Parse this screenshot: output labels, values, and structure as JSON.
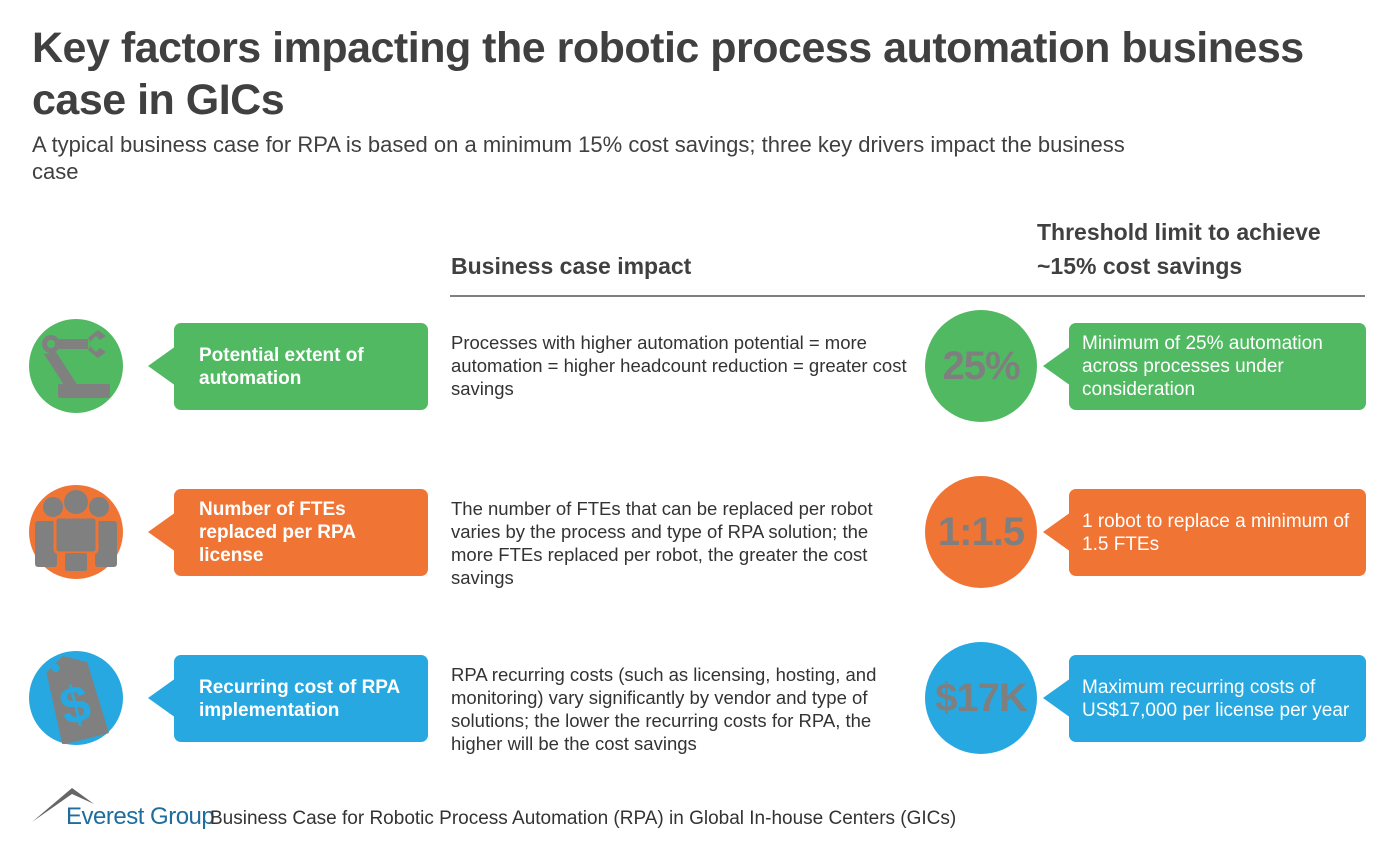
{
  "title": "Key factors impacting the robotic process automation business case in GICs",
  "subtitle": "A typical business case for RPA is based on a minimum 15% cost  savings; three key drivers impact the business case",
  "headers": {
    "impact": "Business case impact",
    "threshold_line1": "Threshold limit to achieve",
    "threshold_line2": "~15% cost savings"
  },
  "colors": {
    "green": "#52b963",
    "orange": "#f07535",
    "blue": "#27a8e0",
    "icon_gray": "#808080"
  },
  "rows": [
    {
      "icon": "robot-arm-icon",
      "factor": "Potential extent of automation",
      "impact": "Processes with higher automation potential = more automation = higher headcount reduction = greater cost savings",
      "value": "25%",
      "threshold": "Minimum of 25% automation across processes under consideration"
    },
    {
      "icon": "people-group-icon",
      "factor": "Number of FTEs replaced per RPA license",
      "impact": "The number of FTEs that can be replaced per robot varies by the process and type of RPA solution; the more FTEs replaced per robot, the greater the cost savings",
      "value": "1:1.5",
      "threshold": "1 robot to replace a minimum of 1.5 FTEs"
    },
    {
      "icon": "price-tag-dollar-icon",
      "factor": "Recurring cost of RPA implementation",
      "impact": "RPA recurring costs (such as licensing, hosting, and monitoring) vary significantly by vendor and type of solutions; the lower the recurring costs for RPA, the higher will be the cost savings",
      "value": "$17K",
      "threshold": "Maximum recurring costs of US$17,000 per license per year"
    }
  ],
  "footer": {
    "logo": "Everest Group",
    "text": "Business Case for Robotic Process Automation (RPA) in Global In-house Centers (GICs)"
  }
}
